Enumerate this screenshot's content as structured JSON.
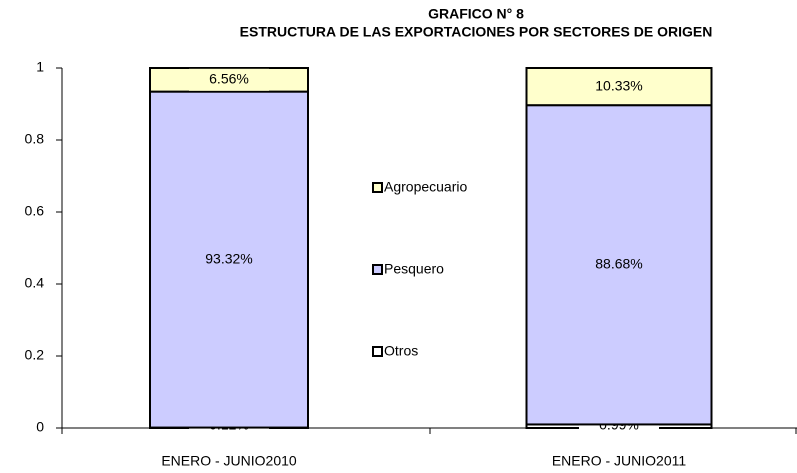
{
  "chart_data": {
    "type": "stacked_bar",
    "title": "GRAFICO N° 8",
    "subtitle": "ESTRUCTURA DE LAS EXPORTACIONES POR SECTORES DE ORIGEN",
    "categories": [
      "ENERO - JUNIO2010",
      "ENERO - JUNIO2011"
    ],
    "series": [
      {
        "name": "Otros",
        "color": "#ffffff",
        "values": [
          0.0012,
          0.0099
        ],
        "value_labels": [
          "0.12%",
          "0.99%"
        ]
      },
      {
        "name": "Pesquero",
        "color": "#ccccff",
        "values": [
          0.9332,
          0.8868
        ],
        "value_labels": [
          "93.32%",
          "88.68%"
        ]
      },
      {
        "name": "Agropecuario",
        "color": "#ffffcc",
        "values": [
          0.0656,
          0.1033
        ],
        "value_labels": [
          "6.56%",
          "10.33%"
        ]
      }
    ],
    "ylim": [
      0,
      1
    ],
    "yticks": [
      0,
      0.2,
      0.4,
      0.6,
      0.8,
      1
    ],
    "grid": false,
    "legend": "center"
  }
}
